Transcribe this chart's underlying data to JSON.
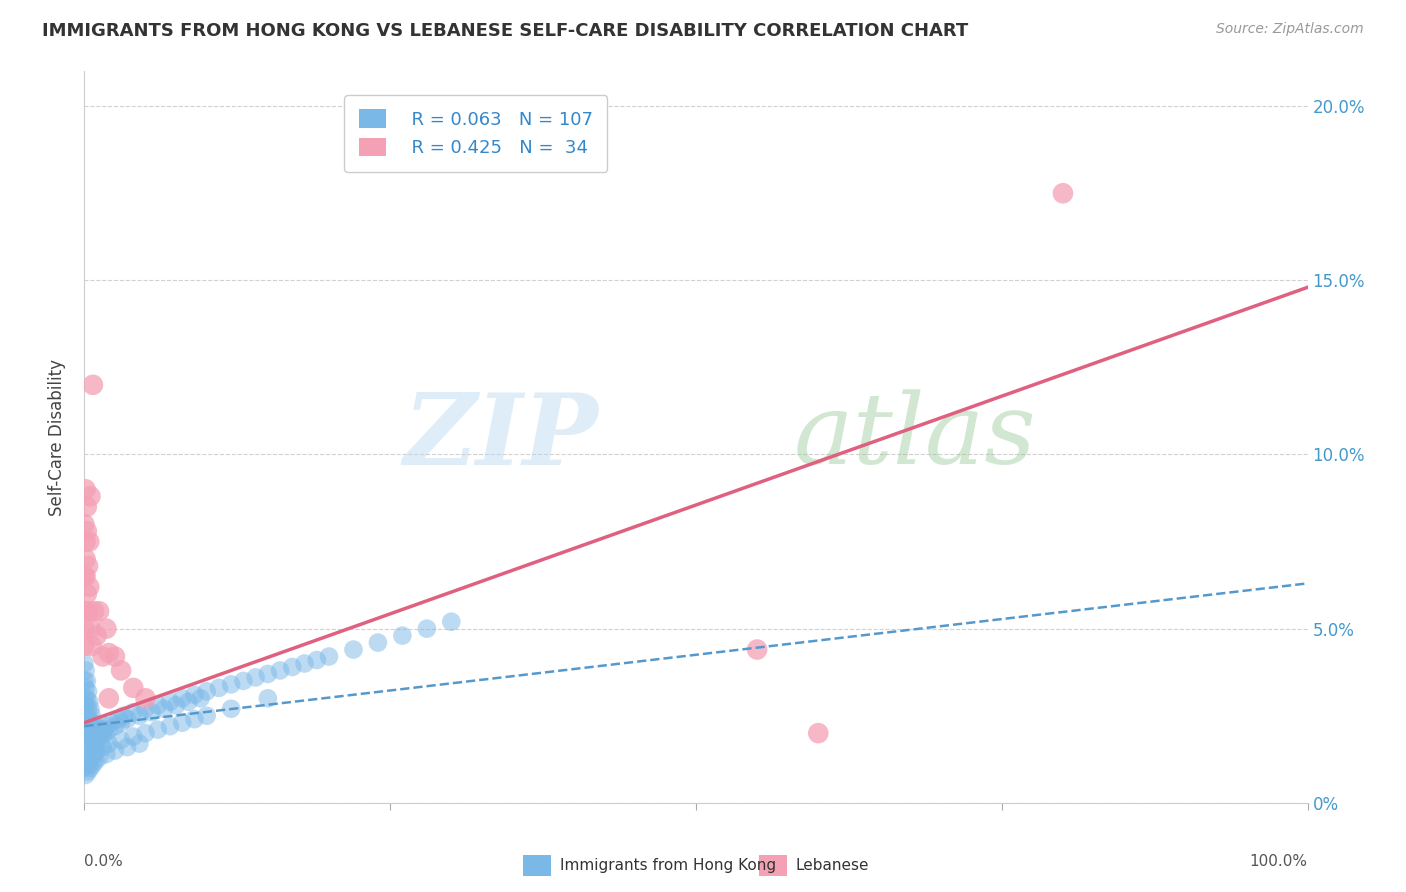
{
  "title": "IMMIGRANTS FROM HONG KONG VS LEBANESE SELF-CARE DISABILITY CORRELATION CHART",
  "source": "Source: ZipAtlas.com",
  "ylabel": "Self-Care Disability",
  "color_blue": "#7ab8e8",
  "color_pink": "#f4a0b5",
  "line_blue": "#5599cc",
  "line_pink": "#e06080",
  "background_color": "#ffffff",
  "grid_color": "#cccccc",
  "xmin": 0.0,
  "xmax": 1.0,
  "ymin": 0.0,
  "ymax": 0.21,
  "ytick_vals": [
    0.0,
    0.05,
    0.1,
    0.15,
    0.2
  ],
  "ytick_labels": [
    "0%",
    "5.0%",
    "10.0%",
    "15.0%",
    "20.0%"
  ],
  "legend_r1": "R = 0.063",
  "legend_n1": "N = 107",
  "legend_r2": "R = 0.425",
  "legend_n2": "N =  34",
  "hk_trend_x": [
    0.0,
    1.0
  ],
  "hk_trend_y": [
    0.022,
    0.063
  ],
  "lb_trend_x": [
    0.0,
    1.0
  ],
  "lb_trend_y": [
    0.023,
    0.148
  ],
  "hk_points_x": [
    0.0,
    0.0,
    0.0,
    0.0,
    0.0,
    0.001,
    0.001,
    0.001,
    0.001,
    0.001,
    0.002,
    0.002,
    0.002,
    0.002,
    0.003,
    0.003,
    0.003,
    0.003,
    0.003,
    0.004,
    0.004,
    0.004,
    0.005,
    0.005,
    0.005,
    0.006,
    0.006,
    0.006,
    0.007,
    0.007,
    0.008,
    0.008,
    0.009,
    0.009,
    0.01,
    0.01,
    0.011,
    0.012,
    0.013,
    0.014,
    0.015,
    0.016,
    0.017,
    0.018,
    0.02,
    0.022,
    0.025,
    0.028,
    0.03,
    0.032,
    0.035,
    0.04,
    0.045,
    0.05,
    0.055,
    0.06,
    0.065,
    0.07,
    0.075,
    0.08,
    0.085,
    0.09,
    0.095,
    0.1,
    0.11,
    0.12,
    0.13,
    0.14,
    0.15,
    0.16,
    0.17,
    0.18,
    0.19,
    0.2,
    0.22,
    0.24,
    0.26,
    0.28,
    0.3,
    0.0,
    0.001,
    0.002,
    0.003,
    0.004,
    0.005,
    0.006,
    0.007,
    0.008,
    0.009,
    0.01,
    0.012,
    0.015,
    0.018,
    0.02,
    0.025,
    0.03,
    0.035,
    0.04,
    0.045,
    0.05,
    0.06,
    0.07,
    0.08,
    0.09,
    0.1,
    0.12,
    0.15
  ],
  "hk_points_y": [
    0.04,
    0.035,
    0.03,
    0.025,
    0.02,
    0.038,
    0.033,
    0.028,
    0.023,
    0.018,
    0.035,
    0.03,
    0.025,
    0.02,
    0.032,
    0.027,
    0.022,
    0.017,
    0.013,
    0.029,
    0.024,
    0.019,
    0.027,
    0.022,
    0.017,
    0.025,
    0.02,
    0.016,
    0.023,
    0.019,
    0.021,
    0.017,
    0.02,
    0.016,
    0.022,
    0.018,
    0.02,
    0.019,
    0.021,
    0.02,
    0.019,
    0.021,
    0.02,
    0.022,
    0.021,
    0.023,
    0.022,
    0.024,
    0.023,
    0.025,
    0.024,
    0.026,
    0.025,
    0.027,
    0.026,
    0.028,
    0.027,
    0.029,
    0.028,
    0.03,
    0.029,
    0.031,
    0.03,
    0.032,
    0.033,
    0.034,
    0.035,
    0.036,
    0.037,
    0.038,
    0.039,
    0.04,
    0.041,
    0.042,
    0.044,
    0.046,
    0.048,
    0.05,
    0.052,
    0.01,
    0.008,
    0.012,
    0.009,
    0.011,
    0.01,
    0.013,
    0.011,
    0.014,
    0.012,
    0.015,
    0.013,
    0.016,
    0.014,
    0.017,
    0.015,
    0.018,
    0.016,
    0.019,
    0.017,
    0.02,
    0.021,
    0.022,
    0.023,
    0.024,
    0.025,
    0.027,
    0.03
  ],
  "lb_points_x": [
    0.0,
    0.0,
    0.0,
    0.0,
    0.0,
    0.001,
    0.001,
    0.001,
    0.001,
    0.002,
    0.002,
    0.002,
    0.003,
    0.003,
    0.004,
    0.004,
    0.005,
    0.005,
    0.006,
    0.007,
    0.008,
    0.01,
    0.012,
    0.015,
    0.018,
    0.02,
    0.025,
    0.03,
    0.04,
    0.05,
    0.6,
    0.8,
    0.55,
    0.02
  ],
  "lb_points_y": [
    0.05,
    0.065,
    0.08,
    0.055,
    0.045,
    0.09,
    0.075,
    0.07,
    0.065,
    0.085,
    0.078,
    0.06,
    0.068,
    0.055,
    0.075,
    0.062,
    0.088,
    0.05,
    0.045,
    0.12,
    0.055,
    0.048,
    0.055,
    0.042,
    0.05,
    0.043,
    0.042,
    0.038,
    0.033,
    0.03,
    0.02,
    0.175,
    0.044,
    0.03
  ]
}
